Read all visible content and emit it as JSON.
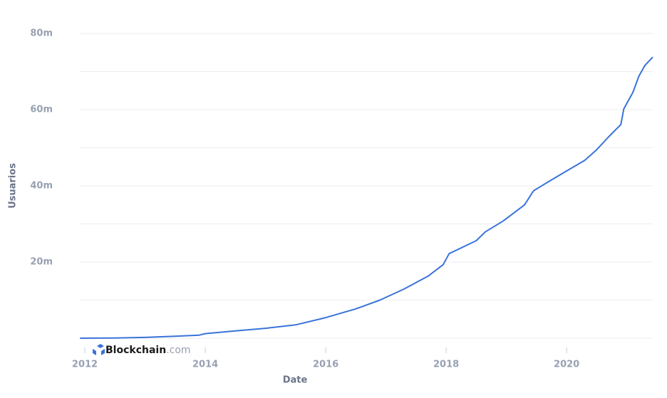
{
  "chart_data": {
    "type": "line",
    "y_label": "Usuarios",
    "x_label": "Date",
    "watermark": {
      "brand": "Blockchain",
      "suffix": ".com"
    },
    "x": [
      2011.92,
      2012.5,
      2013,
      2013.5,
      2013.9,
      2014,
      2014.5,
      2015,
      2015.5,
      2016,
      2016.5,
      2016.9,
      2017.3,
      2017.7,
      2017.95,
      2018.05,
      2018.5,
      2018.65,
      2018.95,
      2019.3,
      2019.45,
      2019.7,
      2020,
      2020.3,
      2020.5,
      2020.7,
      2020.9,
      2020.95,
      2021.1,
      2021.2,
      2021.3,
      2021.43
    ],
    "series": [
      {
        "name": "Usuarios",
        "color": "#3a73d9",
        "values": [
          0,
          50000,
          200000,
          500000,
          800000,
          1200000,
          1900000,
          2600000,
          3500000,
          5400000,
          7700000,
          10000000,
          12900000,
          16300000,
          19300000,
          22200000,
          25600000,
          27900000,
          30800000,
          35000000,
          38700000,
          41100000,
          43900000,
          46700000,
          49500000,
          52900000,
          56100000,
          60200000,
          64500000,
          68800000,
          71600000,
          73800000
        ]
      }
    ],
    "xlim": [
      2011.917,
      2021.43
    ],
    "xticks": [
      2012,
      2014,
      2016,
      2018,
      2020
    ],
    "ylim": [
      0,
      80000000
    ],
    "yticks": [
      {
        "value": 20000000,
        "label": "20m"
      },
      {
        "value": 40000000,
        "label": "40m"
      },
      {
        "value": 60000000,
        "label": "60m"
      },
      {
        "value": 80000000,
        "label": "80m"
      }
    ],
    "minor_yticks": [
      0,
      10000000,
      30000000,
      50000000,
      70000000
    ],
    "grid": true
  }
}
